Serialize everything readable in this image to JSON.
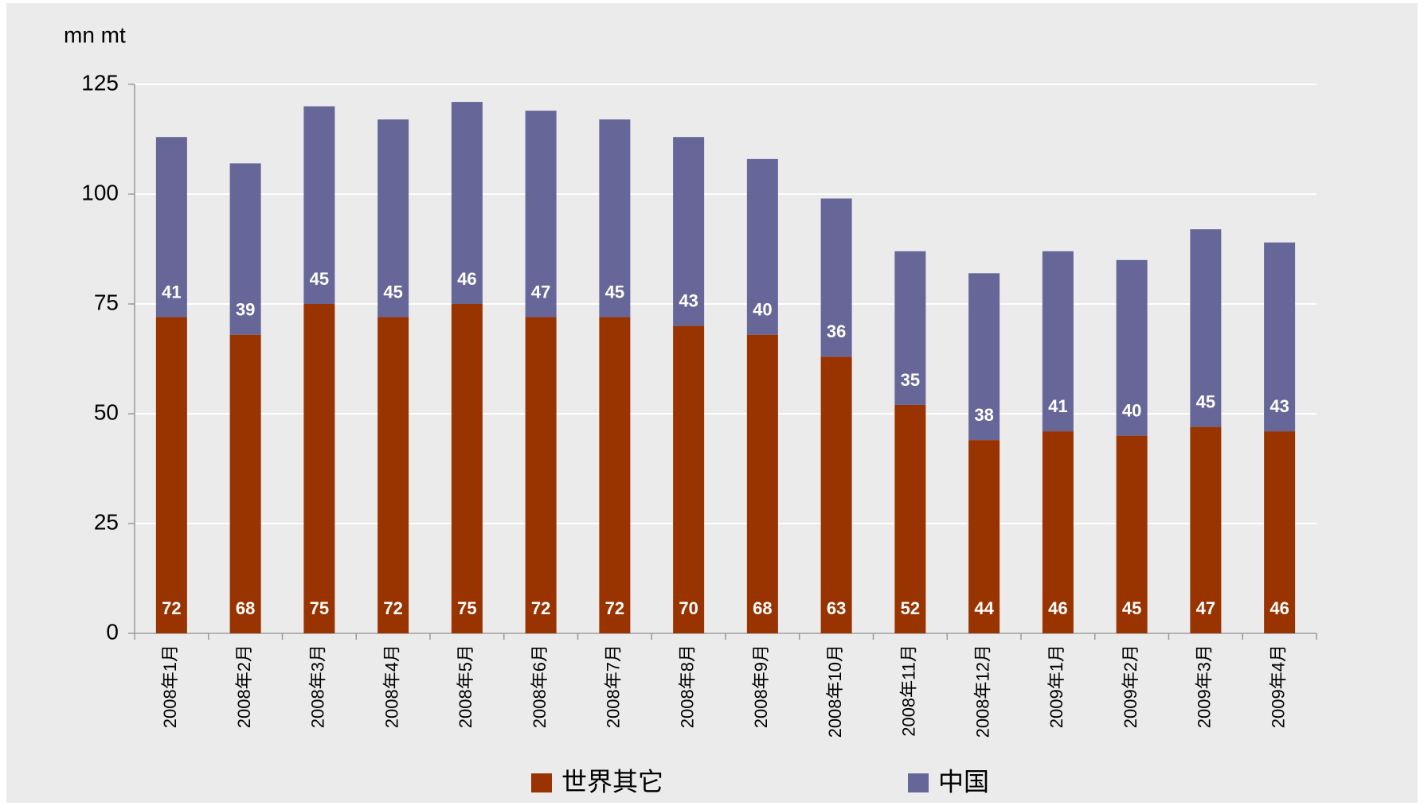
{
  "chart_data": {
    "type": "bar",
    "stacked": true,
    "y_label": "mn mt",
    "categories": [
      "2008年1月",
      "2008年2月",
      "2008年3月",
      "2008年4月",
      "2008年5月",
      "2008年6月",
      "2008年7月",
      "2008年8月",
      "2008年9月",
      "2008年10月",
      "2008年11月",
      "2008年12月",
      "2009年1月",
      "2009年2月",
      "2009年3月",
      "2009年4月"
    ],
    "series": [
      {
        "name": "世界其它",
        "color": "#993300",
        "values": [
          72,
          68,
          75,
          72,
          75,
          72,
          72,
          70,
          68,
          63,
          52,
          44,
          46,
          45,
          47,
          46
        ]
      },
      {
        "name": "中国",
        "color": "#666699",
        "values": [
          41,
          39,
          45,
          45,
          46,
          47,
          45,
          43,
          40,
          36,
          35,
          38,
          41,
          40,
          45,
          43
        ]
      }
    ],
    "ylim": [
      0,
      125
    ],
    "yticks": [
      0,
      25,
      50,
      75,
      100,
      125
    ],
    "grid": true,
    "legend": "bottom"
  }
}
